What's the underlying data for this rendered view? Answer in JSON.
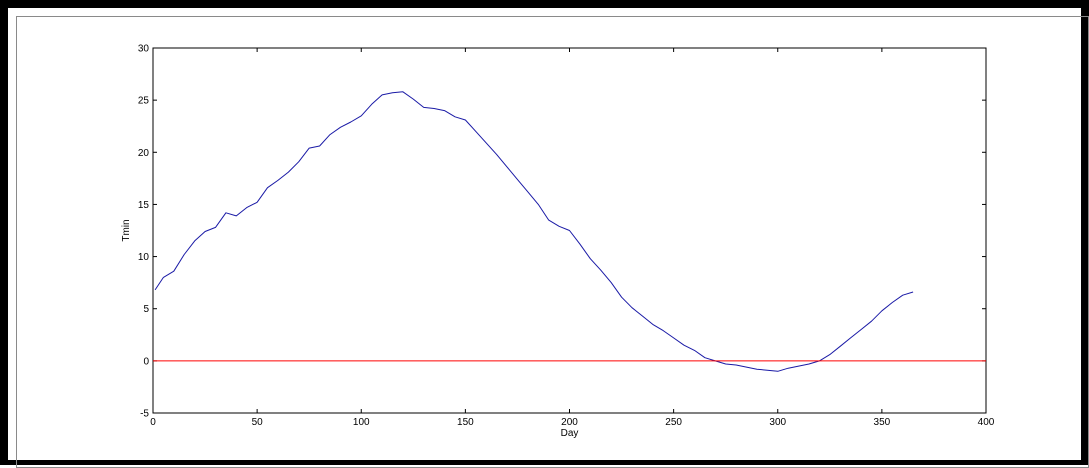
{
  "chart_data": {
    "type": "line",
    "xlabel": "Day",
    "ylabel": "Tmin",
    "xlim": [
      0,
      400
    ],
    "ylim": [
      -5,
      30
    ],
    "xticks": [
      0,
      50,
      100,
      150,
      200,
      250,
      300,
      350,
      400
    ],
    "yticks": [
      -5,
      0,
      5,
      10,
      15,
      20,
      25,
      30
    ],
    "grid": false,
    "legend": "none",
    "series": [
      {
        "color": "#1a1aa6",
        "x": [
          1,
          5,
          10,
          15,
          20,
          25,
          30,
          35,
          40,
          45,
          50,
          55,
          60,
          65,
          70,
          75,
          80,
          85,
          90,
          95,
          100,
          105,
          110,
          115,
          120,
          125,
          130,
          135,
          140,
          145,
          150,
          155,
          160,
          165,
          170,
          175,
          180,
          185,
          190,
          195,
          200,
          205,
          210,
          215,
          220,
          225,
          230,
          235,
          240,
          245,
          250,
          255,
          260,
          265,
          270,
          275,
          280,
          285,
          290,
          295,
          300,
          305,
          310,
          315,
          320,
          325,
          330,
          335,
          340,
          345,
          350,
          355,
          360,
          365
        ],
        "y": [
          6.8,
          8.0,
          8.6,
          10.2,
          11.5,
          12.4,
          12.8,
          14.2,
          13.9,
          14.7,
          15.2,
          16.6,
          17.3,
          18.1,
          19.1,
          20.4,
          20.6,
          21.7,
          22.4,
          22.9,
          23.5,
          24.6,
          25.5,
          25.7,
          25.8,
          25.1,
          24.3,
          24.2,
          24.0,
          23.4,
          23.1,
          22.0,
          20.9,
          19.8,
          18.6,
          17.4,
          16.2,
          15.0,
          13.5,
          12.9,
          12.5,
          11.2,
          9.8,
          8.7,
          7.5,
          6.1,
          5.1,
          4.3,
          3.5,
          2.9,
          2.2,
          1.5,
          1.0,
          0.3,
          0.0,
          -0.3,
          -0.4,
          -0.6,
          -0.8,
          -0.9,
          -1.0,
          -0.7,
          -0.5,
          -0.3,
          0.0,
          0.6,
          1.4,
          2.2,
          3.0,
          3.8,
          4.8,
          5.6,
          6.3,
          6.6
        ]
      },
      {
        "color": "#ff0000",
        "x": [
          0,
          400
        ],
        "y": [
          0,
          0
        ]
      }
    ]
  }
}
